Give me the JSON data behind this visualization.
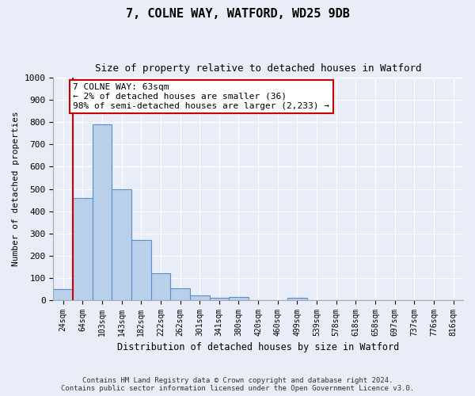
{
  "title1": "7, COLNE WAY, WATFORD, WD25 9DB",
  "title2": "Size of property relative to detached houses in Watford",
  "xlabel": "Distribution of detached houses by size in Watford",
  "ylabel": "Number of detached properties",
  "categories": [
    "24sqm",
    "64sqm",
    "103sqm",
    "143sqm",
    "182sqm",
    "222sqm",
    "262sqm",
    "301sqm",
    "341sqm",
    "380sqm",
    "420sqm",
    "460sqm",
    "499sqm",
    "539sqm",
    "578sqm",
    "618sqm",
    "658sqm",
    "697sqm",
    "737sqm",
    "776sqm",
    "816sqm"
  ],
  "values": [
    50,
    460,
    790,
    500,
    270,
    120,
    52,
    22,
    10,
    14,
    0,
    0,
    10,
    0,
    0,
    0,
    0,
    0,
    0,
    0,
    0
  ],
  "bar_color": "#b8d0ea",
  "bar_edge_color": "#5b8fc9",
  "vline_color": "#cc0000",
  "annotation_text": "7 COLNE WAY: 63sqm\n← 2% of detached houses are smaller (36)\n98% of semi-detached houses are larger (2,233) →",
  "annotation_box_color": "#ffffff",
  "annotation_box_edge": "#cc0000",
  "ylim": [
    0,
    1000
  ],
  "yticks": [
    0,
    100,
    200,
    300,
    400,
    500,
    600,
    700,
    800,
    900,
    1000
  ],
  "footer1": "Contains HM Land Registry data © Crown copyright and database right 2024.",
  "footer2": "Contains public sector information licensed under the Open Government Licence v3.0.",
  "bg_color": "#e8edf8",
  "grid_color": "#ffffff"
}
